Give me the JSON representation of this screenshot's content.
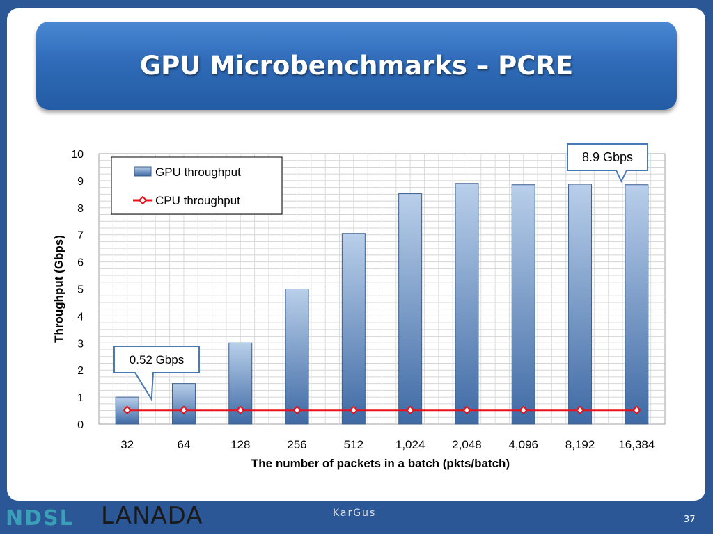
{
  "title": "GPU Microbenchmarks – PCRE",
  "footer": {
    "logo_ndsl": "NDSL",
    "logo_lanada": "LANADA",
    "logo_kargus": "KarGus",
    "page_number": "37"
  },
  "chart_data": {
    "type": "bar",
    "xlabel": "The number of packets in a batch (pkts/batch)",
    "ylabel": "Throughput (Gbps)",
    "ylim": [
      0,
      10
    ],
    "yticks": [
      "0",
      "1",
      "2",
      "3",
      "4",
      "5",
      "6",
      "7",
      "8",
      "9",
      "10"
    ],
    "categories": [
      "32",
      "64",
      "128",
      "256",
      "512",
      "1,024",
      "2,048",
      "4,096",
      "8,192",
      "16,384"
    ],
    "series": [
      {
        "name": "GPU throughput",
        "type": "bar",
        "color": "#5b84b8",
        "values": [
          1.0,
          1.5,
          3.0,
          5.0,
          7.05,
          8.52,
          8.9,
          8.85,
          8.87,
          8.85
        ]
      },
      {
        "name": "CPU throughput",
        "type": "line",
        "color": "#e8101a",
        "values": [
          0.52,
          0.52,
          0.52,
          0.52,
          0.52,
          0.52,
          0.52,
          0.52,
          0.52,
          0.52
        ]
      }
    ],
    "legend": "top-left",
    "grid": true,
    "annotations": [
      {
        "text": "0.52 Gbps",
        "category_index": 0
      },
      {
        "text": "8.9 Gbps",
        "category_index": 9
      }
    ]
  }
}
